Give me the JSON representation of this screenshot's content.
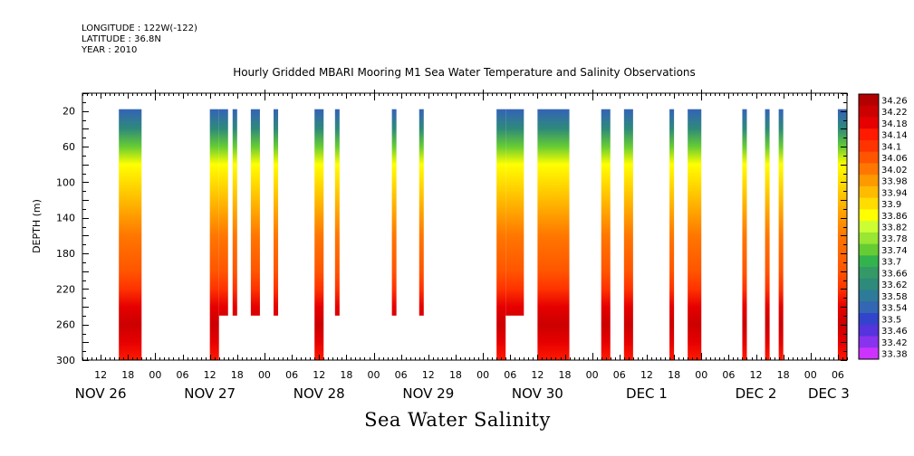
{
  "header": {
    "longitude_line": "LONGITUDE : 122W(-122)",
    "latitude_line": "LATITUDE : 36.8N",
    "year_line": "YEAR : 2010",
    "title": "Hourly Gridded MBARI Mooring M1 Sea Water Temperature and Salinity Observations"
  },
  "chart_data": {
    "type": "heatmap",
    "title": "Hourly Gridded MBARI Mooring M1 Sea Water Temperature and Salinity Observations",
    "xlabel": "Sea Water Salinity",
    "ylabel": "DEPTH (m)",
    "x_unit": "hours since 2010-11-26 00:00",
    "xlim": [
      8,
      176
    ],
    "ylim": [
      300,
      0
    ],
    "y_ticks": [
      20,
      60,
      100,
      140,
      180,
      220,
      260,
      300
    ],
    "x_hour_tick_labels": [
      "12",
      "18",
      "00",
      "06",
      "12",
      "18",
      "00",
      "06",
      "12",
      "18",
      "00",
      "06",
      "12",
      "18",
      "00",
      "06",
      "12",
      "18",
      "00",
      "06",
      "12",
      "18",
      "00",
      "06",
      "12",
      "18",
      "00",
      "06"
    ],
    "x_day_labels": [
      {
        "label": "NOV 26",
        "hour": 12
      },
      {
        "label": "NOV 27",
        "hour": 36
      },
      {
        "label": "NOV 28",
        "hour": 60
      },
      {
        "label": "NOV 29",
        "hour": 84
      },
      {
        "label": "NOV 30",
        "hour": 108
      },
      {
        "label": "DEC  1",
        "hour": 132
      },
      {
        "label": "DEC  2",
        "hour": 156
      },
      {
        "label": "DEC  3",
        "hour": 172
      }
    ],
    "colorbar": {
      "levels": [
        34.26,
        34.22,
        34.18,
        34.14,
        34.1,
        34.06,
        34.02,
        33.98,
        33.94,
        33.9,
        33.86,
        33.82,
        33.78,
        33.74,
        33.7,
        33.66,
        33.62,
        33.58,
        33.54,
        33.5,
        33.46,
        33.42,
        33.38
      ],
      "colors": [
        "#b30000",
        "#cc0000",
        "#e60000",
        "#ff1a00",
        "#ff3300",
        "#ff5500",
        "#ff7700",
        "#ff9900",
        "#ffbb00",
        "#ffdd00",
        "#ffff00",
        "#ccff33",
        "#99e633",
        "#66cc33",
        "#33b34d",
        "#339966",
        "#2e8a7a",
        "#2e7a99",
        "#3366b3",
        "#3344cc",
        "#5533dd",
        "#8833ee",
        "#cc33ff"
      ]
    },
    "data_columns": [
      {
        "start": 16.0,
        "end": 21.0,
        "max_depth": 300
      },
      {
        "start": 36.0,
        "end": 38.0,
        "max_depth": 300
      },
      {
        "start": 38.0,
        "end": 40.0,
        "max_depth": 250
      },
      {
        "start": 41.0,
        "end": 42.0,
        "max_depth": 250
      },
      {
        "start": 45.0,
        "end": 47.0,
        "max_depth": 250
      },
      {
        "start": 50.0,
        "end": 51.0,
        "max_depth": 250
      },
      {
        "start": 59.0,
        "end": 61.0,
        "max_depth": 300
      },
      {
        "start": 63.5,
        "end": 64.5,
        "max_depth": 250
      },
      {
        "start": 76.0,
        "end": 77.0,
        "max_depth": 250
      },
      {
        "start": 82.0,
        "end": 83.0,
        "max_depth": 250
      },
      {
        "start": 99.0,
        "end": 101.0,
        "max_depth": 300
      },
      {
        "start": 101.0,
        "end": 105.0,
        "max_depth": 250
      },
      {
        "start": 108.0,
        "end": 115.0,
        "max_depth": 300
      },
      {
        "start": 122.0,
        "end": 124.0,
        "max_depth": 300
      },
      {
        "start": 127.0,
        "end": 129.0,
        "max_depth": 300
      },
      {
        "start": 137.0,
        "end": 138.0,
        "max_depth": 300
      },
      {
        "start": 141.0,
        "end": 144.0,
        "max_depth": 300
      },
      {
        "start": 153.0,
        "end": 154.0,
        "max_depth": 300
      },
      {
        "start": 158.0,
        "end": 159.0,
        "max_depth": 300
      },
      {
        "start": 161.0,
        "end": 162.0,
        "max_depth": 300
      },
      {
        "start": 174.0,
        "end": 176.0,
        "max_depth": 300
      }
    ],
    "salinity_profile": [
      {
        "depth": 20,
        "value": 33.54
      },
      {
        "depth": 40,
        "value": 33.62
      },
      {
        "depth": 60,
        "value": 33.74
      },
      {
        "depth": 80,
        "value": 33.86
      },
      {
        "depth": 100,
        "value": 33.92
      },
      {
        "depth": 120,
        "value": 33.96
      },
      {
        "depth": 140,
        "value": 34.0
      },
      {
        "depth": 160,
        "value": 34.04
      },
      {
        "depth": 200,
        "value": 34.06
      },
      {
        "depth": 220,
        "value": 34.12
      },
      {
        "depth": 240,
        "value": 34.18
      },
      {
        "depth": 260,
        "value": 34.22
      },
      {
        "depth": 280,
        "value": 34.18
      },
      {
        "depth": 300,
        "value": 34.14
      }
    ]
  }
}
